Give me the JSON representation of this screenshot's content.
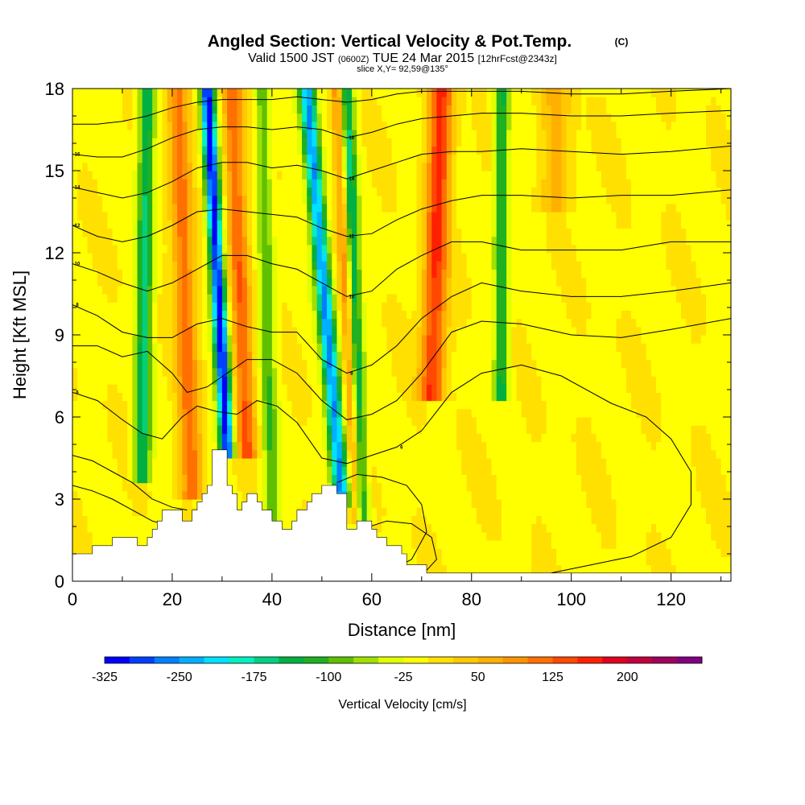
{
  "header": {
    "title": "Angled Section: Vertical Velocity & Pot.Temp.",
    "title_unit": "(C)",
    "valid_prefix": "Valid 1500 JST",
    "valid_utc": "(0600Z)",
    "valid_date": "TUE 24 Mar 2015",
    "forecast": "[12hrFcst@2343z]",
    "slice": "slice X,Y= 92,59@135°"
  },
  "chart_data": {
    "type": "heatmap",
    "xlabel": "Distance [nm]",
    "ylabel": "Height [Kft MSL]",
    "xlim": [
      0,
      132
    ],
    "ylim": [
      0,
      18
    ],
    "x_ticks": [
      0,
      20,
      40,
      60,
      80,
      100,
      120
    ],
    "x_tick_labels": [
      "0",
      "20",
      "40",
      "60",
      "80",
      "100",
      "120"
    ],
    "y_ticks": [
      0,
      3,
      6,
      9,
      12,
      15,
      18
    ],
    "y_tick_labels": [
      "0",
      "3",
      "6",
      "9",
      "12",
      "15",
      "18"
    ],
    "background_value": -5,
    "updrafts_and_downdrafts": [
      {
        "x_bottom": 14,
        "x_top": 15,
        "y_bottom": 4.0,
        "peak": -150,
        "width": 1.6
      },
      {
        "x_bottom": 24,
        "x_top": 21,
        "y_bottom": 3.5,
        "peak": 120,
        "width": 2.2
      },
      {
        "x_bottom": 31,
        "x_top": 27,
        "y_bottom": 4.8,
        "peak": -320,
        "width": 1.4
      },
      {
        "x_bottom": 35,
        "x_top": 32,
        "y_bottom": 5.0,
        "peak": 130,
        "width": 2.0
      },
      {
        "x_bottom": 40,
        "x_top": 38,
        "y_bottom": 2.5,
        "peak": -90,
        "width": 1.5
      },
      {
        "x_bottom": 54,
        "x_top": 47,
        "y_bottom": 3.0,
        "peak": -250,
        "width": 1.6
      },
      {
        "x_bottom": 58,
        "x_top": 55,
        "y_bottom": 2.5,
        "peak": -150,
        "width": 1.4
      },
      {
        "x_bottom": 57,
        "x_top": 53,
        "y_bottom": 2.5,
        "peak": 110,
        "width": 1.2
      },
      {
        "x_bottom": 72,
        "x_top": 74,
        "y_bottom": 7.0,
        "peak": 160,
        "width": 2.4
      },
      {
        "x_bottom": 86,
        "x_top": 86,
        "y_bottom": 7.0,
        "peak": -130,
        "width": 1.4
      },
      {
        "x_bottom": 97,
        "x_top": 97,
        "y_bottom": 14.0,
        "peak": 60,
        "width": 3.0
      }
    ],
    "terrain": [
      [
        0,
        1.0
      ],
      [
        4,
        1.0
      ],
      [
        4,
        1.3
      ],
      [
        8,
        1.3
      ],
      [
        8,
        1.6
      ],
      [
        13,
        1.6
      ],
      [
        13,
        1.3
      ],
      [
        15,
        1.3
      ],
      [
        15,
        1.6
      ],
      [
        16,
        1.6
      ],
      [
        16,
        1.9
      ],
      [
        17,
        1.9
      ],
      [
        17,
        2.2
      ],
      [
        18,
        2.2
      ],
      [
        18,
        2.6
      ],
      [
        22,
        2.6
      ],
      [
        22,
        2.2
      ],
      [
        24,
        2.2
      ],
      [
        24,
        2.6
      ],
      [
        25,
        2.6
      ],
      [
        25,
        2.9
      ],
      [
        26,
        2.9
      ],
      [
        26,
        3.2
      ],
      [
        27,
        3.2
      ],
      [
        27,
        3.5
      ],
      [
        28,
        3.5
      ],
      [
        28,
        4.8
      ],
      [
        31,
        4.8
      ],
      [
        31,
        3.5
      ],
      [
        32,
        3.5
      ],
      [
        32,
        3.2
      ],
      [
        33,
        3.2
      ],
      [
        33,
        2.6
      ],
      [
        34,
        2.6
      ],
      [
        34,
        2.9
      ],
      [
        35,
        2.9
      ],
      [
        35,
        3.2
      ],
      [
        37,
        3.2
      ],
      [
        37,
        2.9
      ],
      [
        38,
        2.9
      ],
      [
        38,
        2.6
      ],
      [
        40,
        2.6
      ],
      [
        40,
        2.2
      ],
      [
        42,
        2.2
      ],
      [
        42,
        1.9
      ],
      [
        44,
        1.9
      ],
      [
        44,
        2.2
      ],
      [
        45,
        2.2
      ],
      [
        45,
        2.6
      ],
      [
        47,
        2.6
      ],
      [
        47,
        2.9
      ],
      [
        48,
        2.9
      ],
      [
        48,
        3.2
      ],
      [
        50,
        3.2
      ],
      [
        50,
        3.5
      ],
      [
        53,
        3.5
      ],
      [
        53,
        3.2
      ],
      [
        55,
        3.2
      ],
      [
        55,
        1.9
      ],
      [
        57,
        1.9
      ],
      [
        57,
        2.2
      ],
      [
        60,
        2.2
      ],
      [
        60,
        1.9
      ],
      [
        61,
        1.9
      ],
      [
        61,
        1.6
      ],
      [
        63,
        1.6
      ],
      [
        63,
        1.3
      ],
      [
        66,
        1.3
      ],
      [
        66,
        1.0
      ],
      [
        67,
        1.0
      ],
      [
        67,
        0.6
      ],
      [
        71,
        0.6
      ],
      [
        71,
        0.3
      ],
      [
        132,
        0.3
      ]
    ],
    "isentropes": [
      {
        "label": "6",
        "pts": [
          [
            0,
            6.9
          ],
          [
            5,
            6.6
          ],
          [
            10,
            5.9
          ],
          [
            14,
            5.4
          ],
          [
            18,
            5.2
          ],
          [
            22,
            6.0
          ],
          [
            25,
            6.4
          ],
          [
            29,
            6.2
          ],
          [
            33,
            6.1
          ],
          [
            37,
            6.6
          ],
          [
            41,
            6.4
          ],
          [
            45,
            5.8
          ],
          [
            50,
            4.5
          ],
          [
            55,
            4.3
          ],
          [
            60,
            4.6
          ],
          [
            65,
            4.9
          ],
          [
            70,
            5.5
          ],
          [
            76,
            6.9
          ],
          [
            82,
            7.6
          ],
          [
            90,
            7.9
          ],
          [
            98,
            7.5
          ],
          [
            104,
            6.9
          ],
          [
            108,
            6.5
          ],
          [
            115,
            6.0
          ],
          [
            120,
            5.2
          ],
          [
            124,
            4.0
          ],
          [
            124,
            2.8
          ],
          [
            120,
            1.6
          ],
          [
            112,
            0.9
          ],
          [
            104,
            0.6
          ],
          [
            96,
            0.3
          ]
        ]
      },
      {
        "label": "",
        "pts": [
          [
            0,
            4.6
          ],
          [
            4,
            4.4
          ],
          [
            8,
            4.0
          ],
          [
            12,
            3.6
          ],
          [
            16,
            3.0
          ],
          [
            20,
            2.7
          ],
          [
            23,
            2.6
          ]
        ]
      },
      {
        "label": "",
        "pts": [
          [
            0,
            3.5
          ],
          [
            4,
            3.3
          ],
          [
            8,
            3.0
          ],
          [
            12,
            2.6
          ],
          [
            16,
            2.2
          ],
          [
            18,
            2.1
          ]
        ]
      },
      {
        "label": "",
        "pts": [
          [
            53,
            3.6
          ],
          [
            57,
            3.9
          ],
          [
            62,
            3.8
          ],
          [
            67,
            3.5
          ],
          [
            70,
            2.8
          ],
          [
            71,
            1.8
          ],
          [
            68,
            0.8
          ],
          [
            66,
            0.6
          ]
        ]
      },
      {
        "label": "",
        "pts": [
          [
            58,
            1.9
          ],
          [
            63,
            2.2
          ],
          [
            68,
            2.1
          ],
          [
            72,
            1.6
          ],
          [
            73,
            0.8
          ],
          [
            71,
            0.4
          ]
        ]
      },
      {
        "label": "",
        "pts": [
          [
            0,
            8.6
          ],
          [
            5,
            8.6
          ],
          [
            10,
            8.2
          ],
          [
            15,
            8.4
          ],
          [
            20,
            7.6
          ],
          [
            23,
            6.9
          ],
          [
            27,
            7.1
          ],
          [
            31,
            7.6
          ],
          [
            35,
            8.1
          ],
          [
            40,
            8.1
          ],
          [
            45,
            7.6
          ],
          [
            50,
            6.6
          ],
          [
            55,
            5.9
          ],
          [
            60,
            6.1
          ],
          [
            65,
            6.6
          ],
          [
            70,
            7.6
          ],
          [
            76,
            9.1
          ],
          [
            82,
            9.5
          ],
          [
            90,
            9.4
          ],
          [
            100,
            9.0
          ],
          [
            110,
            8.9
          ],
          [
            120,
            9.2
          ],
          [
            132,
            9.6
          ]
        ]
      },
      {
        "label": "8",
        "pts": [
          [
            0,
            10.1
          ],
          [
            5,
            9.7
          ],
          [
            10,
            9.1
          ],
          [
            15,
            8.9
          ],
          [
            20,
            8.9
          ],
          [
            25,
            9.4
          ],
          [
            30,
            9.6
          ],
          [
            35,
            9.3
          ],
          [
            40,
            9.1
          ],
          [
            45,
            9.1
          ],
          [
            50,
            8.1
          ],
          [
            55,
            7.6
          ],
          [
            60,
            7.9
          ],
          [
            65,
            8.6
          ],
          [
            70,
            9.6
          ],
          [
            76,
            10.4
          ],
          [
            82,
            10.9
          ],
          [
            90,
            10.6
          ],
          [
            100,
            10.4
          ],
          [
            110,
            10.4
          ],
          [
            120,
            10.6
          ],
          [
            132,
            10.9
          ]
        ]
      },
      {
        "label": "10",
        "pts": [
          [
            0,
            11.6
          ],
          [
            5,
            11.3
          ],
          [
            10,
            10.9
          ],
          [
            15,
            10.6
          ],
          [
            20,
            10.9
          ],
          [
            25,
            11.4
          ],
          [
            30,
            11.9
          ],
          [
            35,
            11.9
          ],
          [
            40,
            11.6
          ],
          [
            45,
            11.4
          ],
          [
            50,
            10.9
          ],
          [
            55,
            10.4
          ],
          [
            60,
            10.6
          ],
          [
            65,
            11.4
          ],
          [
            70,
            11.9
          ],
          [
            76,
            12.4
          ],
          [
            82,
            12.4
          ],
          [
            90,
            12.1
          ],
          [
            100,
            12.1
          ],
          [
            110,
            12.1
          ],
          [
            120,
            12.4
          ],
          [
            132,
            12.4
          ]
        ]
      },
      {
        "label": "12",
        "pts": [
          [
            0,
            13.0
          ],
          [
            5,
            12.6
          ],
          [
            10,
            12.4
          ],
          [
            15,
            12.6
          ],
          [
            20,
            13.0
          ],
          [
            25,
            13.5
          ],
          [
            30,
            13.6
          ],
          [
            35,
            13.5
          ],
          [
            40,
            13.4
          ],
          [
            45,
            13.3
          ],
          [
            50,
            12.9
          ],
          [
            55,
            12.6
          ],
          [
            60,
            12.7
          ],
          [
            65,
            13.2
          ],
          [
            70,
            13.6
          ],
          [
            76,
            13.9
          ],
          [
            82,
            14.1
          ],
          [
            90,
            14.1
          ],
          [
            100,
            14.0
          ],
          [
            110,
            14.1
          ],
          [
            120,
            14.1
          ],
          [
            132,
            14.3
          ]
        ]
      },
      {
        "label": "14",
        "pts": [
          [
            0,
            14.4
          ],
          [
            5,
            14.2
          ],
          [
            10,
            14.0
          ],
          [
            15,
            14.2
          ],
          [
            20,
            14.6
          ],
          [
            25,
            15.1
          ],
          [
            30,
            15.3
          ],
          [
            35,
            15.3
          ],
          [
            40,
            15.1
          ],
          [
            45,
            15.2
          ],
          [
            50,
            15.0
          ],
          [
            55,
            14.7
          ],
          [
            60,
            15.0
          ],
          [
            65,
            15.3
          ],
          [
            70,
            15.6
          ],
          [
            76,
            15.7
          ],
          [
            82,
            15.7
          ],
          [
            90,
            15.8
          ],
          [
            100,
            15.7
          ],
          [
            110,
            15.6
          ],
          [
            120,
            15.7
          ],
          [
            132,
            15.9
          ]
        ]
      },
      {
        "label": "16",
        "pts": [
          [
            0,
            15.6
          ],
          [
            5,
            15.5
          ],
          [
            10,
            15.5
          ],
          [
            15,
            15.8
          ],
          [
            20,
            16.2
          ],
          [
            25,
            16.5
          ],
          [
            30,
            16.6
          ],
          [
            35,
            16.6
          ],
          [
            40,
            16.5
          ],
          [
            45,
            16.6
          ],
          [
            50,
            16.5
          ],
          [
            55,
            16.2
          ],
          [
            60,
            16.4
          ],
          [
            65,
            16.7
          ],
          [
            70,
            16.9
          ],
          [
            76,
            17.0
          ],
          [
            82,
            17.1
          ],
          [
            90,
            17.1
          ],
          [
            100,
            17.0
          ],
          [
            110,
            17.0
          ],
          [
            120,
            17.1
          ],
          [
            132,
            17.2
          ]
        ]
      },
      {
        "label": "",
        "pts": [
          [
            0,
            16.7
          ],
          [
            5,
            16.7
          ],
          [
            10,
            16.8
          ],
          [
            15,
            17.0
          ],
          [
            20,
            17.3
          ],
          [
            25,
            17.5
          ],
          [
            30,
            17.6
          ],
          [
            35,
            17.6
          ],
          [
            40,
            17.6
          ],
          [
            45,
            17.7
          ],
          [
            50,
            17.6
          ],
          [
            55,
            17.5
          ],
          [
            60,
            17.6
          ],
          [
            65,
            17.8
          ],
          [
            70,
            17.9
          ],
          [
            80,
            17.9
          ],
          [
            90,
            17.9
          ],
          [
            100,
            17.8
          ],
          [
            110,
            17.8
          ],
          [
            120,
            17.9
          ],
          [
            132,
            18.0
          ]
        ]
      }
    ],
    "colorbar": {
      "label": "Vertical Velocity [cm/s]",
      "min": -325,
      "max": 275,
      "step": 25,
      "tick_values": [
        -325,
        -250,
        -175,
        -100,
        -25,
        50,
        125,
        200
      ],
      "tick_labels": [
        "-325",
        "-250",
        "-175",
        "-100",
        "-25",
        "50",
        "125",
        "200"
      ],
      "colors": [
        "#0000ff",
        "#0040ff",
        "#0080ff",
        "#00b0ff",
        "#00e0ff",
        "#00f0c0",
        "#00d080",
        "#00b040",
        "#20b020",
        "#60c000",
        "#a0e000",
        "#e0ff00",
        "#ffff00",
        "#ffe000",
        "#ffc800",
        "#ffb000",
        "#ff9400",
        "#ff7000",
        "#ff4800",
        "#ff2000",
        "#e00020",
        "#c00040",
        "#a00060",
        "#800080"
      ]
    }
  }
}
